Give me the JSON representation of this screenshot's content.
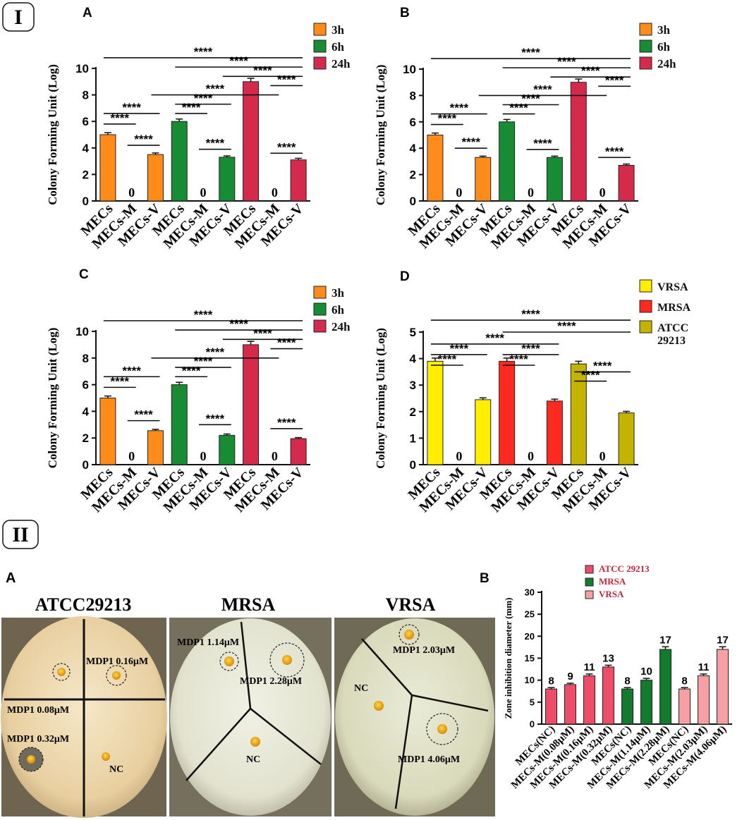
{
  "section_labels": {
    "one": "I",
    "two": "II"
  },
  "colors": {
    "3h": "#ff8c1a",
    "6h": "#178c34",
    "24h": "#d42b4d",
    "VRSA": "#ffee00",
    "MRSA": "#ff2a1f",
    "ATCC": "#c4b300",
    "ATCC_zone": "#ee4d6a",
    "MRSA_zone": "#137a2e",
    "VRSA_zone": "#f6a0a6"
  },
  "photos": [
    {
      "title": "ATCC29213",
      "labels": [
        "MDP1 0.16μM",
        "MDP1 0.08μM",
        "MDP1 0.32μM",
        "NC"
      ]
    },
    {
      "title": "MRSA",
      "labels": [
        "MDP1 1.14μM",
        "MDP1 2.28μM",
        "NC"
      ]
    },
    {
      "title": "VRSA",
      "labels": [
        "MDP1 2.03μM",
        "NC",
        "MDP1 4.06μM"
      ]
    }
  ],
  "photo_panel_label": "A",
  "chart_data": [
    {
      "panel": "A",
      "type": "bar",
      "ylabel": "Colony Forming Unit (Log)",
      "ylim": [
        0,
        10
      ],
      "yticks": [
        0,
        2,
        4,
        6,
        8,
        10
      ],
      "categories": [
        "MECs",
        "MECs-M",
        "MECs-V",
        "MECs",
        "MECs-M",
        "MECs-V",
        "MECs",
        "MECs-M",
        "MECs-V"
      ],
      "values": [
        5.0,
        0,
        3.5,
        6.0,
        0,
        3.3,
        9.0,
        0,
        3.1
      ],
      "errors": [
        0.15,
        0,
        0.12,
        0.18,
        0,
        0.1,
        0.25,
        0,
        0.12
      ],
      "groups": [
        0,
        0,
        0,
        1,
        1,
        1,
        2,
        2,
        2
      ],
      "zero_label": "0",
      "legend": [
        {
          "name": "3h",
          "color": "#ff8c1a"
        },
        {
          "name": "6h",
          "color": "#178c34"
        },
        {
          "name": "24h",
          "color": "#d42b4d"
        }
      ],
      "brackets": [
        {
          "a": 0,
          "b": 8,
          "y": 10.8,
          "label": "****"
        },
        {
          "a": 3,
          "b": 8,
          "y": 10.1,
          "label": "****"
        },
        {
          "a": 5,
          "b": 8,
          "y": 9.4,
          "label": "****"
        },
        {
          "a": 7,
          "b": 8,
          "y": 8.7,
          "label": "****"
        },
        {
          "a": 2,
          "b": 7,
          "y": 8.0,
          "label": "****"
        },
        {
          "a": 3,
          "b": 5,
          "y": 7.3,
          "label": "****"
        },
        {
          "a": 3,
          "b": 4,
          "y": 6.6,
          "label": "****"
        },
        {
          "a": 0,
          "b": 2,
          "y": 6.6,
          "label": "****"
        },
        {
          "a": 0,
          "b": 1,
          "y": 5.8,
          "label": "****"
        },
        {
          "a": 1,
          "b": 2,
          "y": 4.2,
          "label": "****"
        },
        {
          "a": 4,
          "b": 5,
          "y": 3.9,
          "label": "****"
        },
        {
          "a": 7,
          "b": 8,
          "y": 3.6,
          "label": "****"
        }
      ]
    },
    {
      "panel": "B",
      "type": "bar",
      "ylabel": "Colony Forming Unit (Log)",
      "ylim": [
        0,
        10
      ],
      "yticks": [
        0,
        2,
        4,
        6,
        8,
        10
      ],
      "categories": [
        "MECs",
        "MECs-M",
        "MECs-V",
        "MECs",
        "MECs-M",
        "MECs-V",
        "MECs",
        "MECs-M",
        "MECs-V"
      ],
      "values": [
        5.0,
        0,
        3.3,
        6.0,
        0,
        3.3,
        9.0,
        0,
        2.7
      ],
      "errors": [
        0.15,
        0,
        0.1,
        0.18,
        0,
        0.1,
        0.25,
        0,
        0.1
      ],
      "groups": [
        0,
        0,
        0,
        1,
        1,
        1,
        2,
        2,
        2
      ],
      "zero_label": "0",
      "legend": [
        {
          "name": "3h",
          "color": "#ff8c1a"
        },
        {
          "name": "6h",
          "color": "#178c34"
        },
        {
          "name": "24h",
          "color": "#d42b4d"
        }
      ],
      "brackets": [
        {
          "a": 0,
          "b": 8,
          "y": 10.8,
          "label": "****"
        },
        {
          "a": 3,
          "b": 8,
          "y": 10.1,
          "label": "****"
        },
        {
          "a": 5,
          "b": 8,
          "y": 9.4,
          "label": "****"
        },
        {
          "a": 7,
          "b": 8,
          "y": 8.7,
          "label": "****"
        },
        {
          "a": 2,
          "b": 7,
          "y": 8.0,
          "label": "****"
        },
        {
          "a": 3,
          "b": 5,
          "y": 7.3,
          "label": "****"
        },
        {
          "a": 3,
          "b": 4,
          "y": 6.6,
          "label": "****"
        },
        {
          "a": 0,
          "b": 2,
          "y": 6.6,
          "label": "****"
        },
        {
          "a": 0,
          "b": 1,
          "y": 5.8,
          "label": "****"
        },
        {
          "a": 1,
          "b": 2,
          "y": 4.0,
          "label": "****"
        },
        {
          "a": 4,
          "b": 5,
          "y": 3.9,
          "label": "****"
        },
        {
          "a": 7,
          "b": 8,
          "y": 3.3,
          "label": "****"
        }
      ]
    },
    {
      "panel": "C",
      "type": "bar",
      "ylabel": "Colony Forming Unit (Log)",
      "ylim": [
        0,
        10
      ],
      "yticks": [
        0,
        2,
        4,
        6,
        8,
        10
      ],
      "categories": [
        "MECs",
        "MECs-M",
        "MECs-V",
        "MECs",
        "MECs-M",
        "MECs-V",
        "MECs",
        "MECs-M",
        "MECs-V"
      ],
      "values": [
        5.0,
        0,
        2.55,
        6.0,
        0,
        2.2,
        9.0,
        0,
        1.95
      ],
      "errors": [
        0.15,
        0,
        0.1,
        0.18,
        0,
        0.1,
        0.25,
        0,
        0.08
      ],
      "groups": [
        0,
        0,
        0,
        1,
        1,
        1,
        2,
        2,
        2
      ],
      "zero_label": "0",
      "legend": [
        {
          "name": "3h",
          "color": "#ff8c1a"
        },
        {
          "name": "6h",
          "color": "#178c34"
        },
        {
          "name": "24h",
          "color": "#d42b4d"
        }
      ],
      "brackets": [
        {
          "a": 0,
          "b": 8,
          "y": 10.8,
          "label": "****"
        },
        {
          "a": 3,
          "b": 8,
          "y": 10.1,
          "label": "****"
        },
        {
          "a": 5,
          "b": 8,
          "y": 9.4,
          "label": "****"
        },
        {
          "a": 7,
          "b": 8,
          "y": 8.7,
          "label": "****"
        },
        {
          "a": 2,
          "b": 7,
          "y": 8.0,
          "label": "****"
        },
        {
          "a": 3,
          "b": 5,
          "y": 7.3,
          "label": "****"
        },
        {
          "a": 3,
          "b": 4,
          "y": 6.6,
          "label": "****"
        },
        {
          "a": 0,
          "b": 2,
          "y": 6.6,
          "label": "****"
        },
        {
          "a": 0,
          "b": 1,
          "y": 5.8,
          "label": "****"
        },
        {
          "a": 1,
          "b": 2,
          "y": 3.3,
          "label": "****"
        },
        {
          "a": 4,
          "b": 5,
          "y": 3.0,
          "label": "****"
        },
        {
          "a": 7,
          "b": 8,
          "y": 2.7,
          "label": "****"
        }
      ]
    },
    {
      "panel": "D",
      "type": "bar",
      "ylabel": "Colony Forming Unit (Log)",
      "ylim": [
        0,
        5
      ],
      "yticks": [
        0,
        1,
        2,
        3,
        4,
        5
      ],
      "categories": [
        "MECs",
        "MECs-M",
        "MECs-V",
        "MECs",
        "MECs-M",
        "MECs-V",
        "MECs",
        "MECs-M",
        "MECs-V"
      ],
      "values": [
        3.9,
        0,
        2.45,
        3.9,
        0,
        2.4,
        3.8,
        0,
        1.95
      ],
      "errors": [
        0.12,
        0,
        0.07,
        0.12,
        0,
        0.07,
        0.1,
        0,
        0.06
      ],
      "groups": [
        0,
        0,
        0,
        1,
        1,
        1,
        2,
        2,
        2
      ],
      "zero_label": "0",
      "legend": [
        {
          "name": "VRSA",
          "color": "#ffee00"
        },
        {
          "name": "MRSA",
          "color": "#ff2a1f"
        },
        {
          "name": "ATCC\n29213",
          "color": "#c4b300"
        }
      ],
      "brackets": [
        {
          "a": 0,
          "b": 8,
          "y": 5.45,
          "label": "****"
        },
        {
          "a": 3,
          "b": 8,
          "y": 5.0,
          "label": "****"
        },
        {
          "a": 0,
          "b": 5,
          "y": 4.55,
          "label": "****"
        },
        {
          "a": 0,
          "b": 2,
          "y": 4.15,
          "label": "****"
        },
        {
          "a": 3,
          "b": 5,
          "y": 4.15,
          "label": "****"
        },
        {
          "a": 0,
          "b": 1,
          "y": 3.75,
          "label": "****"
        },
        {
          "a": 3,
          "b": 4,
          "y": 3.75,
          "label": "****"
        },
        {
          "a": 6,
          "b": 8,
          "y": 3.5,
          "label": "****"
        },
        {
          "a": 6,
          "b": 7,
          "y": 3.15,
          "label": "****"
        }
      ]
    },
    {
      "panel": "B",
      "type": "bar",
      "ylabel": "Zone inhibition diameter (mm)",
      "ylim": [
        0,
        30
      ],
      "yticks": [
        0,
        5,
        10,
        15,
        20,
        25,
        30
      ],
      "categories": [
        "MECs(NC)",
        "MECs-M(0.08μM)",
        "MECs-M(0.16μM)",
        "MECs-M(0.32μM)",
        "MECs(NC)",
        "MECs-M(1.14μM)",
        "MECs-M(2.28μM)",
        "MECs(NC)",
        "MECs-M(2.03μM)",
        "MECs-M(4.06μM)"
      ],
      "values": [
        8,
        9,
        11,
        13,
        8,
        10,
        17,
        8,
        11,
        17
      ],
      "errors": [
        0.3,
        0.3,
        0.4,
        0.4,
        0.3,
        0.4,
        0.6,
        0.3,
        0.4,
        0.6
      ],
      "groups": [
        0,
        0,
        0,
        0,
        1,
        1,
        1,
        2,
        2,
        2
      ],
      "value_labels": [
        "8",
        "9",
        "11",
        "13",
        "8",
        "10",
        "17",
        "8",
        "11",
        "17"
      ],
      "legend": [
        {
          "name": "ATCC 29213",
          "color": "#ee4d6a"
        },
        {
          "name": "MRSA",
          "color": "#137a2e"
        },
        {
          "name": "VRSA",
          "color": "#f6a0a6"
        }
      ]
    }
  ]
}
